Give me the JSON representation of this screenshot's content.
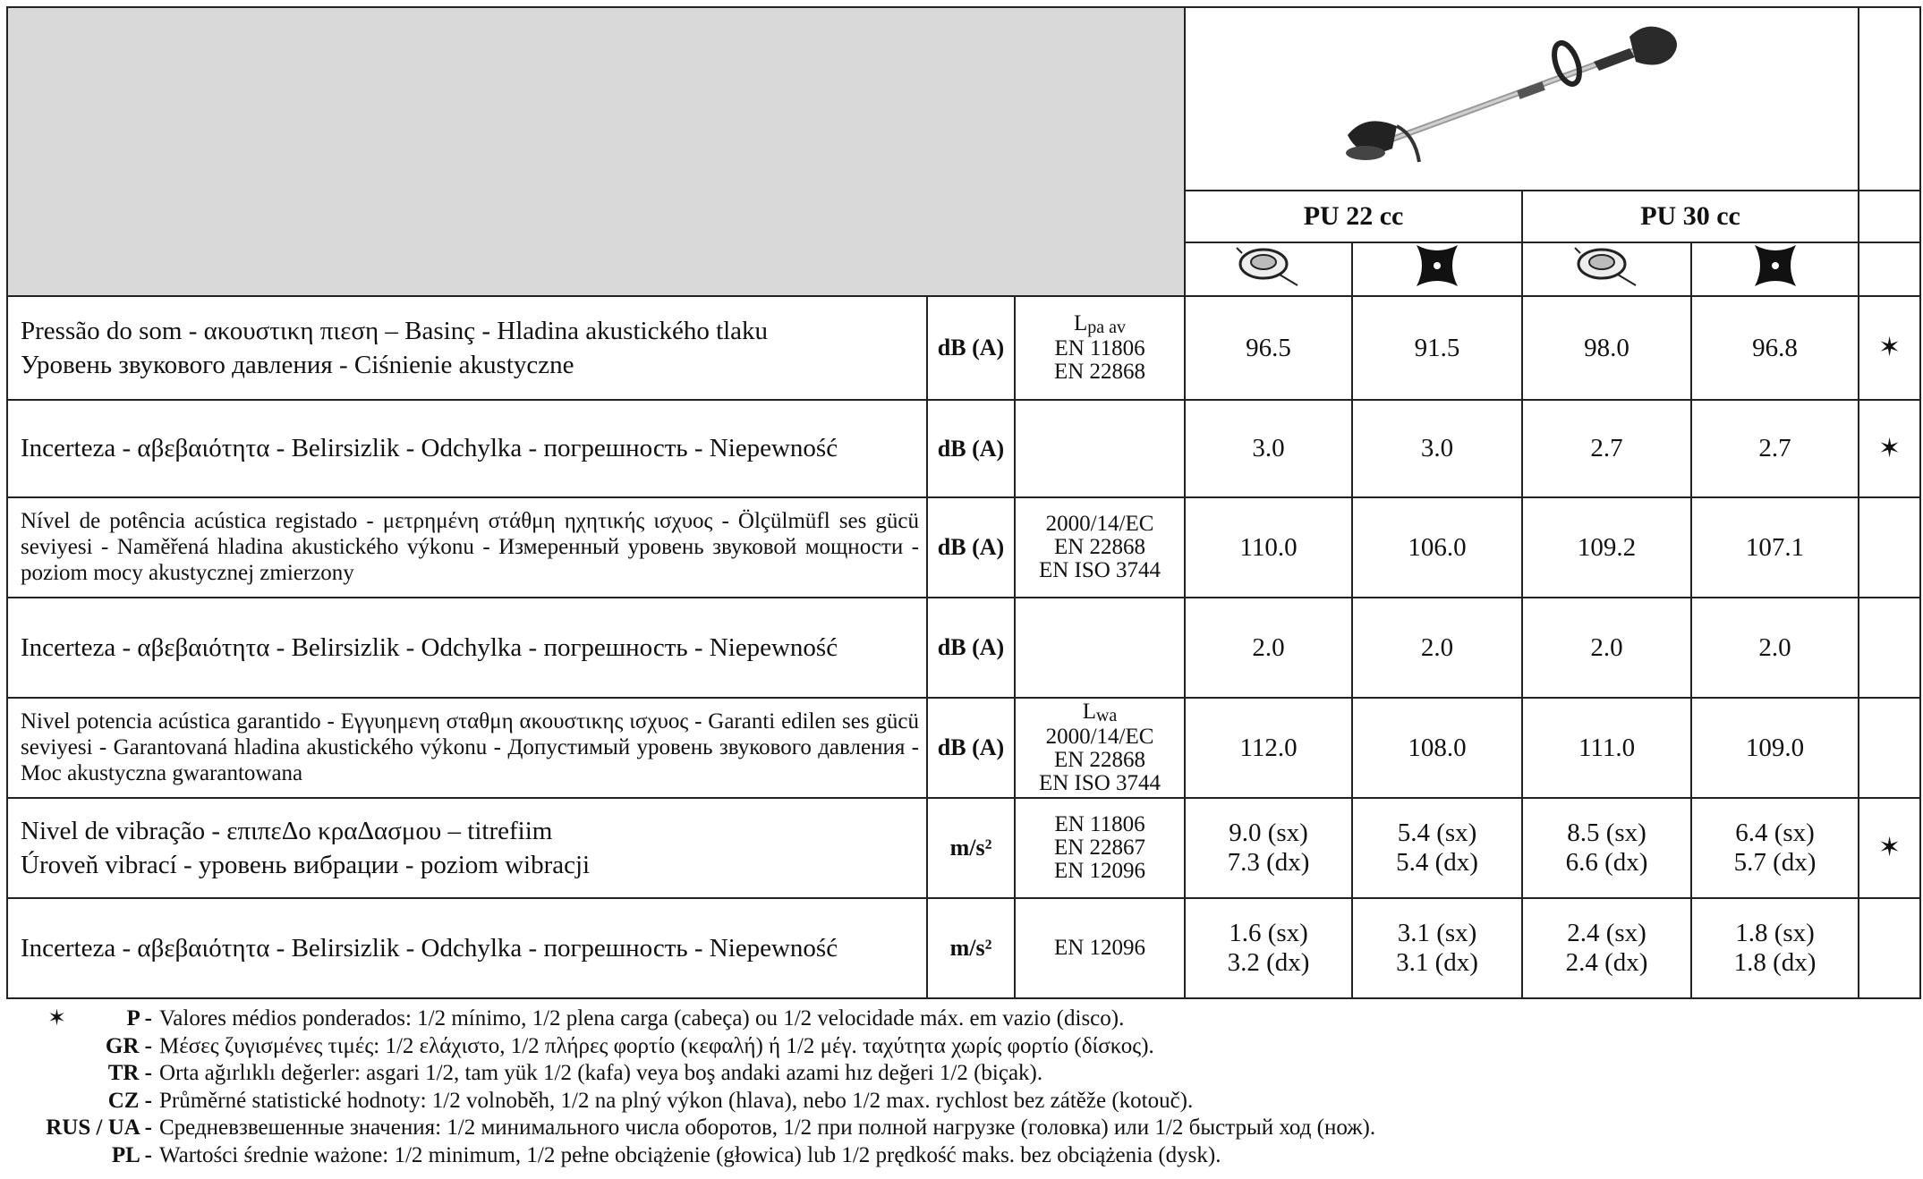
{
  "header": {
    "models": [
      "PU 22 cc",
      "PU 30 cc"
    ]
  },
  "rows": [
    {
      "label": [
        "Pressão do som - ακουστικη πιεση – Basinç - Hladina akustického tlaku",
        "Уровень звукового давления - Ciśnienie akustyczne"
      ],
      "unit": "dB (A)",
      "standard": [
        {
          "base": "L",
          "sub": "pa av"
        },
        "EN 11806",
        "EN 22868"
      ],
      "values": [
        [
          "96.5"
        ],
        [
          "91.5"
        ],
        [
          "98.0"
        ],
        [
          "96.8"
        ]
      ],
      "mark": "✶"
    },
    {
      "label": [
        "Incerteza - αβεβαιότητα - Belirsizlik - Odchylka - погрешность - Niepewność"
      ],
      "unit": "dB (A)",
      "standard": [],
      "values": [
        [
          "3.0"
        ],
        [
          "3.0"
        ],
        [
          "2.7"
        ],
        [
          "2.7"
        ]
      ],
      "mark": "✶"
    },
    {
      "label": [
        "Nível de potência acústica registado - μετρημένη στάθμη ηχητικής ισχυος - Ölçülmüfl ses gücü seviyesi - Naměřená hladina akustického výkonu - Измеренный уровень звуковой мощности - poziom mocy akustycznej zmierzony"
      ],
      "unit": "dB (A)",
      "small": true,
      "standard": [
        "2000/14/EC",
        "EN 22868",
        "EN ISO 3744"
      ],
      "values": [
        [
          "110.0"
        ],
        [
          "106.0"
        ],
        [
          "109.2"
        ],
        [
          "107.1"
        ]
      ]
    },
    {
      "label": [
        "Incerteza - αβεβαιότητα - Belirsizlik - Odchylka - погрешность - Niepewność"
      ],
      "unit": "dB (A)",
      "standard": [],
      "values": [
        [
          "2.0"
        ],
        [
          "2.0"
        ],
        [
          "2.0"
        ],
        [
          "2.0"
        ]
      ]
    },
    {
      "label": [
        "Nivel potencia acústica garantido - Εγγυημενη σταθμη ακουστικης ισχυος - Garanti edilen ses gücü seviyesi - Garantovaná hladina akustického výkonu - Допустимый уровень звукового давления - Moc akustyczna gwarantowana"
      ],
      "unit": "dB (A)",
      "small": true,
      "standard": [
        {
          "base": "L",
          "sub": "wa"
        },
        "2000/14/EC",
        "EN 22868",
        "EN ISO 3744"
      ],
      "values": [
        [
          "112.0"
        ],
        [
          "108.0"
        ],
        [
          "111.0"
        ],
        [
          "109.0"
        ]
      ]
    },
    {
      "label": [
        "Nivel de vibração - επιπεΔο κραΔασμου – titrefiim",
        "Úroveň vibrací - уровень вибрации - poziom wibracji"
      ],
      "unit": "m/s²",
      "standard": [
        "EN 11806",
        "EN 22867",
        "EN 12096"
      ],
      "values": [
        [
          "9.0 (sx)",
          "7.3 (dx)"
        ],
        [
          "5.4 (sx)",
          "5.4 (dx)"
        ],
        [
          "8.5 (sx)",
          "6.6 (dx)"
        ],
        [
          "6.4 (sx)",
          "5.7 (dx)"
        ]
      ],
      "mark": "✶"
    },
    {
      "label": [
        "Incerteza - αβεβαιότητα - Belirsizlik - Odchylka - погрешность - Niepewność"
      ],
      "unit": "m/s²",
      "standard": [
        "EN 12096"
      ],
      "values": [
        [
          "1.6 (sx)",
          "3.2 (dx)"
        ],
        [
          "3.1 (sx)",
          "3.1 (dx)"
        ],
        [
          "2.4 (sx)",
          "2.4 (dx)"
        ],
        [
          "1.8 (sx)",
          "1.8 (dx)"
        ]
      ]
    }
  ],
  "footnotes": [
    {
      "marker": "✶",
      "code": "P -",
      "text": "Valores médios ponderados: 1/2 mínimo, 1/2 plena carga (cabeça) ou 1/2 velocidade máx. em vazio (disco)."
    },
    {
      "code": "GR -",
      "text": "Μέσες ζυγισμένες τιμές: 1/2 ελάχιστο, 1/2 πλήρες φορτίο (κεφαλή) ή 1/2 μέγ. ταχύτητα χωρίς φορτίο (δίσκος)."
    },
    {
      "code": "TR -",
      "text": "Orta ağırlıklı değerler: asgari 1/2, tam yük 1/2 (kafa) veya boş andaki azami hız değeri 1/2 (biçak)."
    },
    {
      "code": "CZ -",
      "text": "Průměrné statistické hodnoty: 1/2 volnoběh, 1/2 na plný výkon (hlava), nebo 1/2 max. rychlost bez zátěže (kotouč)."
    },
    {
      "code": "RUS / UA -",
      "text": "Средневзвешенные значения: 1/2 минимального числа оборотов, 1/2  при полной нагрузке (головка) или 1/2 быстрый ход (нож)."
    },
    {
      "code": "PL -",
      "text": "Wartości średnie ważone: 1/2 minimum, 1/2 pełne obciążenie (głowica) lub 1/2 prędkość maks. bez obciążenia (dysk)."
    }
  ]
}
